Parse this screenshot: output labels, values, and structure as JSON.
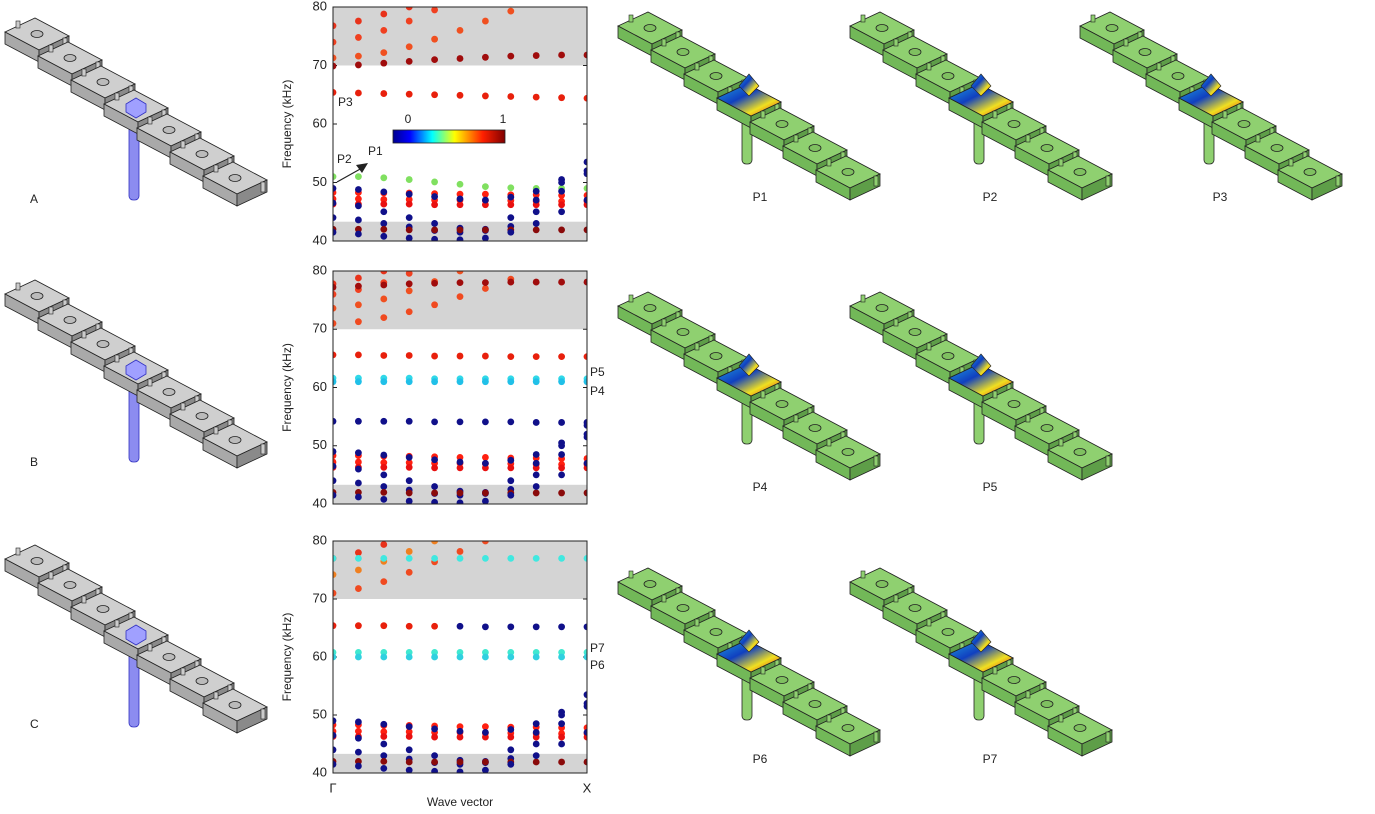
{
  "figure_labels": {
    "structures": [
      "A",
      "B",
      "C"
    ],
    "modes": [
      "P1",
      "P2",
      "P3",
      "P4",
      "P5",
      "P6",
      "P7"
    ]
  },
  "chart_data": [
    {
      "type": "scatter",
      "y_label": "Frequency (kHz)",
      "ylim": [
        40,
        80
      ],
      "yticks": [
        40,
        50,
        60,
        70,
        80
      ],
      "xlim": [
        0,
        1
      ],
      "x": [
        0,
        0.1,
        0.2,
        0.3,
        0.4,
        0.5,
        0.6,
        0.7,
        0.8,
        0.9,
        1
      ],
      "bandgaps": [
        [
          70,
          80
        ],
        [
          40,
          43.3
        ]
      ],
      "bandgap_color": "#d4d4d4",
      "annotations": [
        "P3",
        "P2",
        "P1"
      ],
      "colorbar": {
        "ticks": [
          0,
          1
        ]
      },
      "series": [
        {
          "color": "#e8321a",
          "values": [
            76.8,
            77.6,
            78.8,
            80,
            null,
            null,
            null,
            null,
            null,
            null,
            null
          ]
        },
        {
          "color": "#f04020",
          "values": [
            74,
            74.8,
            76,
            77.6,
            79.5,
            null,
            null,
            null,
            null,
            null,
            null
          ]
        },
        {
          "color": "#f05020",
          "values": [
            71.3,
            71.6,
            72.2,
            73.2,
            74.5,
            76,
            77.6,
            79.3,
            null,
            null,
            null
          ]
        },
        {
          "color": "#a00c0c",
          "values": [
            69.9,
            70.1,
            70.4,
            70.7,
            71,
            71.2,
            71.4,
            71.6,
            71.7,
            71.8,
            71.8
          ]
        },
        {
          "color": "#e8200c",
          "values": [
            65.4,
            65.3,
            65.2,
            65.1,
            65,
            64.9,
            64.8,
            64.7,
            64.6,
            64.5,
            64.4
          ]
        },
        {
          "color": "#80e060",
          "values": [
            51,
            51,
            50.8,
            50.5,
            50.1,
            49.7,
            49.3,
            49.1,
            49,
            49,
            49
          ]
        },
        {
          "color": "#ff2010",
          "values": [
            48.3,
            48.3,
            48.2,
            48.2,
            48.1,
            48,
            48,
            47.9,
            47.9,
            47.8,
            47.8
          ]
        },
        {
          "color": "#ff2010",
          "values": [
            47.2,
            47.2,
            47.1,
            47.1,
            47,
            47,
            46.9,
            46.9,
            46.8,
            46.8,
            46.8
          ]
        },
        {
          "color": "#e81010",
          "values": [
            46.3,
            46.3,
            46.3,
            46.3,
            46.2,
            46.2,
            46.2,
            46.2,
            46.2,
            46.2,
            46.2
          ]
        },
        {
          "color": "#10108a",
          "values": [
            44,
            43.6,
            43,
            42.4,
            41.8,
            41.5,
            42,
            44,
            47,
            50.5,
            53.5
          ]
        },
        {
          "color": "#10108a",
          "values": [
            46.5,
            46,
            45,
            44,
            43,
            42.2,
            41.8,
            42.5,
            45,
            48.5,
            52
          ]
        },
        {
          "color": "#10108a",
          "values": [
            49,
            48.8,
            48.4,
            48,
            47.6,
            47.2,
            47,
            47.5,
            48.5,
            50,
            51.5
          ]
        },
        {
          "color": "#8a0a0a",
          "values": [
            42,
            42,
            42,
            41.9,
            41.9,
            41.9,
            41.9,
            41.9,
            41.9,
            41.9,
            41.9
          ]
        },
        {
          "color": "#10108a",
          "values": [
            41.5,
            41.2,
            40.8,
            40.5,
            40.3,
            40.2,
            40.5,
            41.5,
            43,
            45,
            47
          ]
        }
      ]
    },
    {
      "type": "scatter",
      "y_label": "Frequency (kHz)",
      "ylim": [
        40,
        80
      ],
      "yticks": [
        40,
        50,
        60,
        70,
        80
      ],
      "xlim": [
        0,
        1
      ],
      "x": [
        0,
        0.1,
        0.2,
        0.3,
        0.4,
        0.5,
        0.6,
        0.7,
        0.8,
        0.9,
        1
      ],
      "bandgaps": [
        [
          70,
          80
        ],
        [
          40,
          43.3
        ]
      ],
      "bandgap_color": "#d4d4d4",
      "annotations": [
        "P5",
        "P4"
      ],
      "series": [
        {
          "color": "#e8321a",
          "values": [
            77.8,
            78.8,
            80,
            null,
            null,
            null,
            null,
            null,
            null,
            null,
            null
          ]
        },
        {
          "color": "#f04020",
          "values": [
            76,
            76.8,
            78,
            79.6,
            null,
            null,
            null,
            null,
            null,
            null,
            null
          ]
        },
        {
          "color": "#f05020",
          "values": [
            73.6,
            74.2,
            75.2,
            76.6,
            78.2,
            80,
            null,
            null,
            null,
            null,
            null
          ]
        },
        {
          "color": "#f04a20",
          "values": [
            71,
            71.3,
            72,
            73,
            74.2,
            75.6,
            77,
            78.6,
            null,
            null,
            null
          ]
        },
        {
          "color": "#a00c0c",
          "values": [
            77.2,
            77.4,
            77.6,
            77.8,
            77.9,
            78,
            78,
            78.1,
            78.1,
            78.1,
            78.1
          ]
        },
        {
          "color": "#e8200c",
          "values": [
            65.6,
            65.6,
            65.5,
            65.5,
            65.4,
            65.4,
            65.4,
            65.3,
            65.3,
            65.3,
            65.3
          ]
        },
        {
          "color": "#30d8e8",
          "values": [
            61.6,
            61.6,
            61.6,
            61.6,
            61.5,
            61.5,
            61.5,
            61.5,
            61.5,
            61.5,
            61.5
          ]
        },
        {
          "color": "#20c0e8",
          "values": [
            61,
            61,
            61,
            61,
            61,
            61,
            61,
            61,
            61,
            61,
            61
          ]
        },
        {
          "color": "#10108a",
          "values": [
            54.2,
            54.2,
            54.2,
            54.2,
            54.1,
            54.1,
            54.1,
            54.1,
            54,
            54,
            54
          ]
        },
        {
          "color": "#ff2010",
          "values": [
            48.3,
            48.3,
            48.2,
            48.2,
            48.1,
            48,
            48,
            47.9,
            47.9,
            47.8,
            47.8
          ]
        },
        {
          "color": "#ff2010",
          "values": [
            47.2,
            47.2,
            47.1,
            47.1,
            47,
            47,
            46.9,
            46.9,
            46.8,
            46.8,
            46.8
          ]
        },
        {
          "color": "#e81010",
          "values": [
            46.3,
            46.3,
            46.3,
            46.3,
            46.2,
            46.2,
            46.2,
            46.2,
            46.2,
            46.2,
            46.2
          ]
        },
        {
          "color": "#10108a",
          "values": [
            44,
            43.6,
            43,
            42.4,
            41.8,
            41.5,
            42,
            44,
            47,
            50.5,
            53.5
          ]
        },
        {
          "color": "#10108a",
          "values": [
            46.5,
            46,
            45,
            44,
            43,
            42.2,
            41.8,
            42.5,
            45,
            48.5,
            52
          ]
        },
        {
          "color": "#10108a",
          "values": [
            49,
            48.8,
            48.4,
            48,
            47.6,
            47.2,
            47,
            47.5,
            48.5,
            50,
            51.5
          ]
        },
        {
          "color": "#8a0a0a",
          "values": [
            42,
            42,
            42,
            41.9,
            41.9,
            41.9,
            41.9,
            41.9,
            41.9,
            41.9,
            41.9
          ]
        },
        {
          "color": "#10108a",
          "values": [
            41.5,
            41.2,
            40.8,
            40.5,
            40.3,
            40.2,
            40.5,
            41.5,
            43,
            45,
            47
          ]
        }
      ]
    },
    {
      "type": "scatter",
      "y_label": "Frequency (kHz)",
      "x_label": "Wave vector",
      "ylim": [
        40,
        80
      ],
      "yticks": [
        40,
        50,
        60,
        70,
        80
      ],
      "xlim": [
        0,
        1
      ],
      "xticks": [
        {
          "value": 0,
          "label": "Γ"
        },
        {
          "value": 1,
          "label": "X"
        }
      ],
      "x": [
        0,
        0.1,
        0.2,
        0.3,
        0.4,
        0.5,
        0.6,
        0.7,
        0.8,
        0.9,
        1
      ],
      "bandgaps": [
        [
          70,
          80
        ],
        [
          40,
          43.3
        ]
      ],
      "bandgap_color": "#d4d4d4",
      "annotations": [
        "P7",
        "P6"
      ],
      "series": [
        {
          "color": "#e8321a",
          "values": [
            77,
            78,
            79.4,
            null,
            null,
            null,
            null,
            null,
            null,
            null,
            null
          ]
        },
        {
          "color": "#f08020",
          "values": [
            74.2,
            75,
            76.5,
            78.2,
            80,
            null,
            null,
            null,
            null,
            null,
            null
          ]
        },
        {
          "color": "#f04a20",
          "values": [
            71,
            71.8,
            73,
            74.6,
            76.4,
            78.2,
            80,
            null,
            null,
            null,
            null
          ]
        },
        {
          "color": "#40e8e0",
          "values": [
            77,
            77,
            77,
            77,
            77,
            77,
            77,
            77,
            77,
            77,
            77
          ]
        },
        {
          "color": "#e8200c",
          "values": [
            65.4,
            65.4,
            65.4,
            65.3,
            65.3,
            null,
            null,
            null,
            null,
            null,
            null
          ]
        },
        {
          "color": "#10108a",
          "values": [
            null,
            null,
            null,
            null,
            null,
            65.3,
            65.2,
            65.2,
            65.2,
            65.2,
            65.2
          ]
        },
        {
          "color": "#40e8d0",
          "values": [
            60.8,
            60.8,
            60.8,
            60.8,
            60.8,
            60.8,
            60.8,
            60.8,
            60.8,
            60.8,
            60.8
          ]
        },
        {
          "color": "#30d0e0",
          "values": [
            60,
            60,
            60,
            60,
            60,
            60,
            60,
            60,
            60,
            60,
            60
          ]
        },
        {
          "color": "#ff2010",
          "values": [
            48.3,
            48.3,
            48.2,
            48.2,
            48.1,
            48,
            48,
            47.9,
            47.9,
            47.8,
            47.8
          ]
        },
        {
          "color": "#ff2010",
          "values": [
            47.2,
            47.2,
            47.1,
            47.1,
            47,
            47,
            46.9,
            46.9,
            46.8,
            46.8,
            46.8
          ]
        },
        {
          "color": "#e81010",
          "values": [
            46.3,
            46.3,
            46.3,
            46.3,
            46.2,
            46.2,
            46.2,
            46.2,
            46.2,
            46.2,
            46.2
          ]
        },
        {
          "color": "#10108a",
          "values": [
            44,
            43.6,
            43,
            42.4,
            41.8,
            41.5,
            42,
            44,
            47,
            50.5,
            53.5
          ]
        },
        {
          "color": "#10108a",
          "values": [
            46.5,
            46,
            45,
            44,
            43,
            42.2,
            41.8,
            42.5,
            45,
            48.5,
            52
          ]
        },
        {
          "color": "#10108a",
          "values": [
            49,
            48.8,
            48.4,
            48,
            47.6,
            47.2,
            47,
            47.5,
            48.5,
            50,
            51.5
          ]
        },
        {
          "color": "#8a0a0a",
          "values": [
            42,
            42,
            42,
            41.9,
            41.9,
            41.9,
            41.9,
            41.9,
            41.9,
            41.9,
            41.9
          ]
        },
        {
          "color": "#10108a",
          "values": [
            41.5,
            41.2,
            40.8,
            40.5,
            40.3,
            40.2,
            40.5,
            41.5,
            43,
            45,
            47
          ]
        }
      ]
    }
  ]
}
